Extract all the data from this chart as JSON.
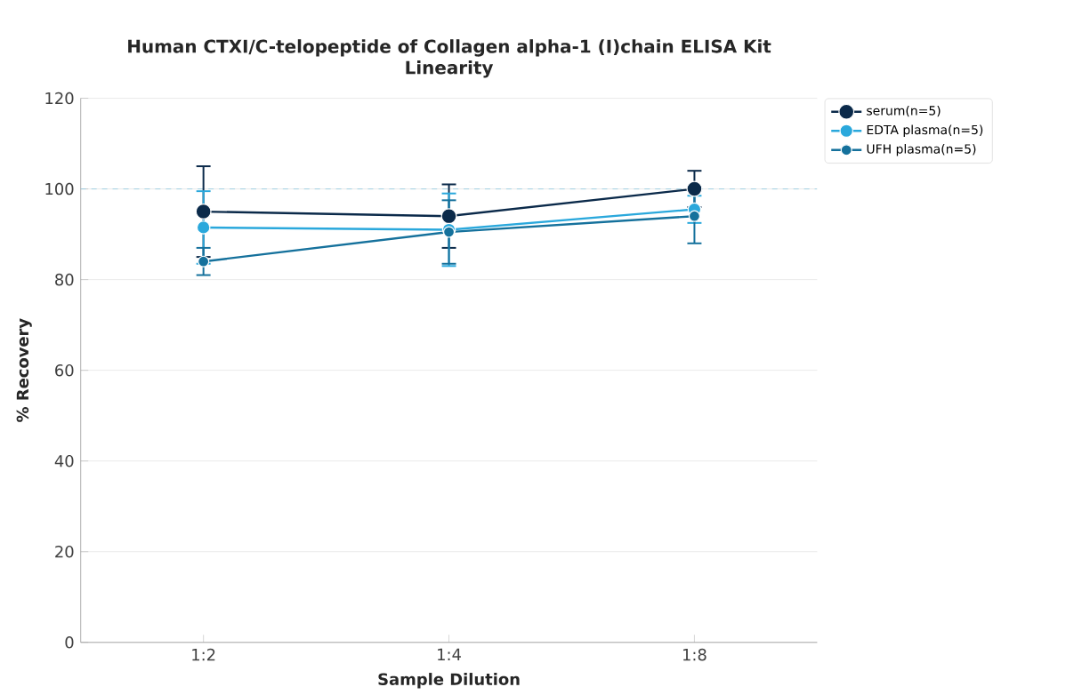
{
  "chart_data": {
    "type": "line",
    "title": "Human CTXI/C-telopeptide of Collagen alpha-1 (I)chain ELISA Kit",
    "subtitle": "Linearity",
    "xlabel": "Sample Dilution",
    "ylabel": "% Recovery",
    "categories": [
      "1:2",
      "1:4",
      "1:8"
    ],
    "series": [
      {
        "name": "serum(n=5)",
        "color": "#0b2a4a",
        "values": [
          95,
          94,
          100
        ],
        "errors": [
          10,
          7,
          4
        ]
      },
      {
        "name": "EDTA plasma(n=5)",
        "color": "#2aa8dc",
        "values": [
          91.5,
          91,
          95.5
        ],
        "errors": [
          8,
          8,
          3
        ]
      },
      {
        "name": "UFH plasma(n=5)",
        "color": "#15719c",
        "values": [
          84,
          90.5,
          94
        ],
        "errors": [
          3,
          7,
          6
        ]
      }
    ],
    "ylim": [
      0,
      120
    ],
    "yticks": [
      0,
      20,
      40,
      60,
      80,
      100,
      120
    ],
    "grid": "y",
    "legend": "top right",
    "marker": "circle",
    "line_style": "solid",
    "ref_lines": [
      {
        "axis": "y",
        "value": 100,
        "color": "#8fc9e0",
        "line_style": "dashed"
      }
    ]
  }
}
